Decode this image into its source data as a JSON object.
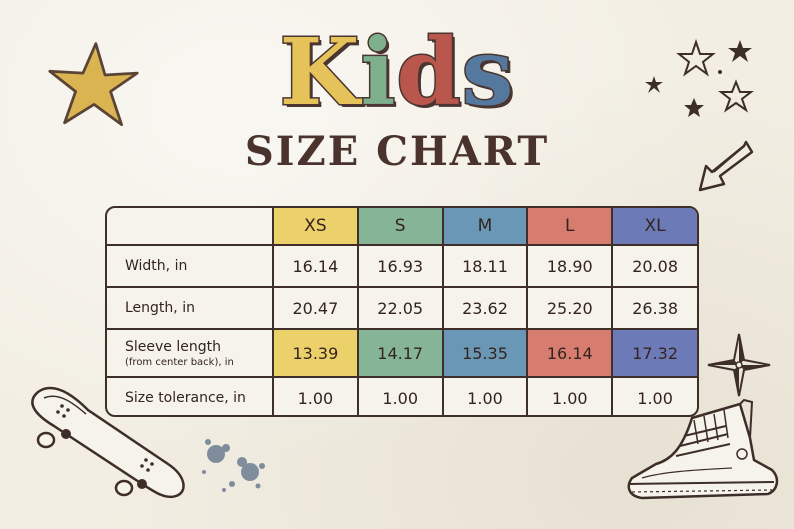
{
  "title": {
    "kids_letters": [
      "K",
      "i",
      "d",
      "s"
    ],
    "subtitle": "SIZE CHART"
  },
  "colors": {
    "k": "#e6c25a",
    "i": "#7fb08e",
    "d": "#b9574d",
    "s": "#55799e",
    "xs": "#ecd06a",
    "s_size": "#86b497",
    "m": "#6a97b6",
    "l": "#d77d70",
    "xl": "#6d7ab8"
  },
  "table": {
    "sizes": [
      "XS",
      "S",
      "M",
      "L",
      "XL"
    ],
    "rows": [
      {
        "label": "Width, in",
        "sub": "",
        "values": [
          "16.14",
          "16.93",
          "18.11",
          "18.90",
          "20.08"
        ]
      },
      {
        "label": "Length, in",
        "sub": "",
        "values": [
          "20.47",
          "22.05",
          "23.62",
          "25.20",
          "26.38"
        ]
      },
      {
        "label": "Sleeve length",
        "sub": "(from center back), in",
        "values": [
          "13.39",
          "14.17",
          "15.35",
          "16.14",
          "17.32"
        ]
      },
      {
        "label": "Size tolerance, in",
        "sub": "",
        "values": [
          "1.00",
          "1.00",
          "1.00",
          "1.00",
          "1.00"
        ]
      }
    ]
  },
  "decorations": [
    "star-icon",
    "stars-icon",
    "arrow-icon",
    "compass-icon",
    "skateboard-icon",
    "paint-splatter-icon",
    "sneaker-icon"
  ]
}
